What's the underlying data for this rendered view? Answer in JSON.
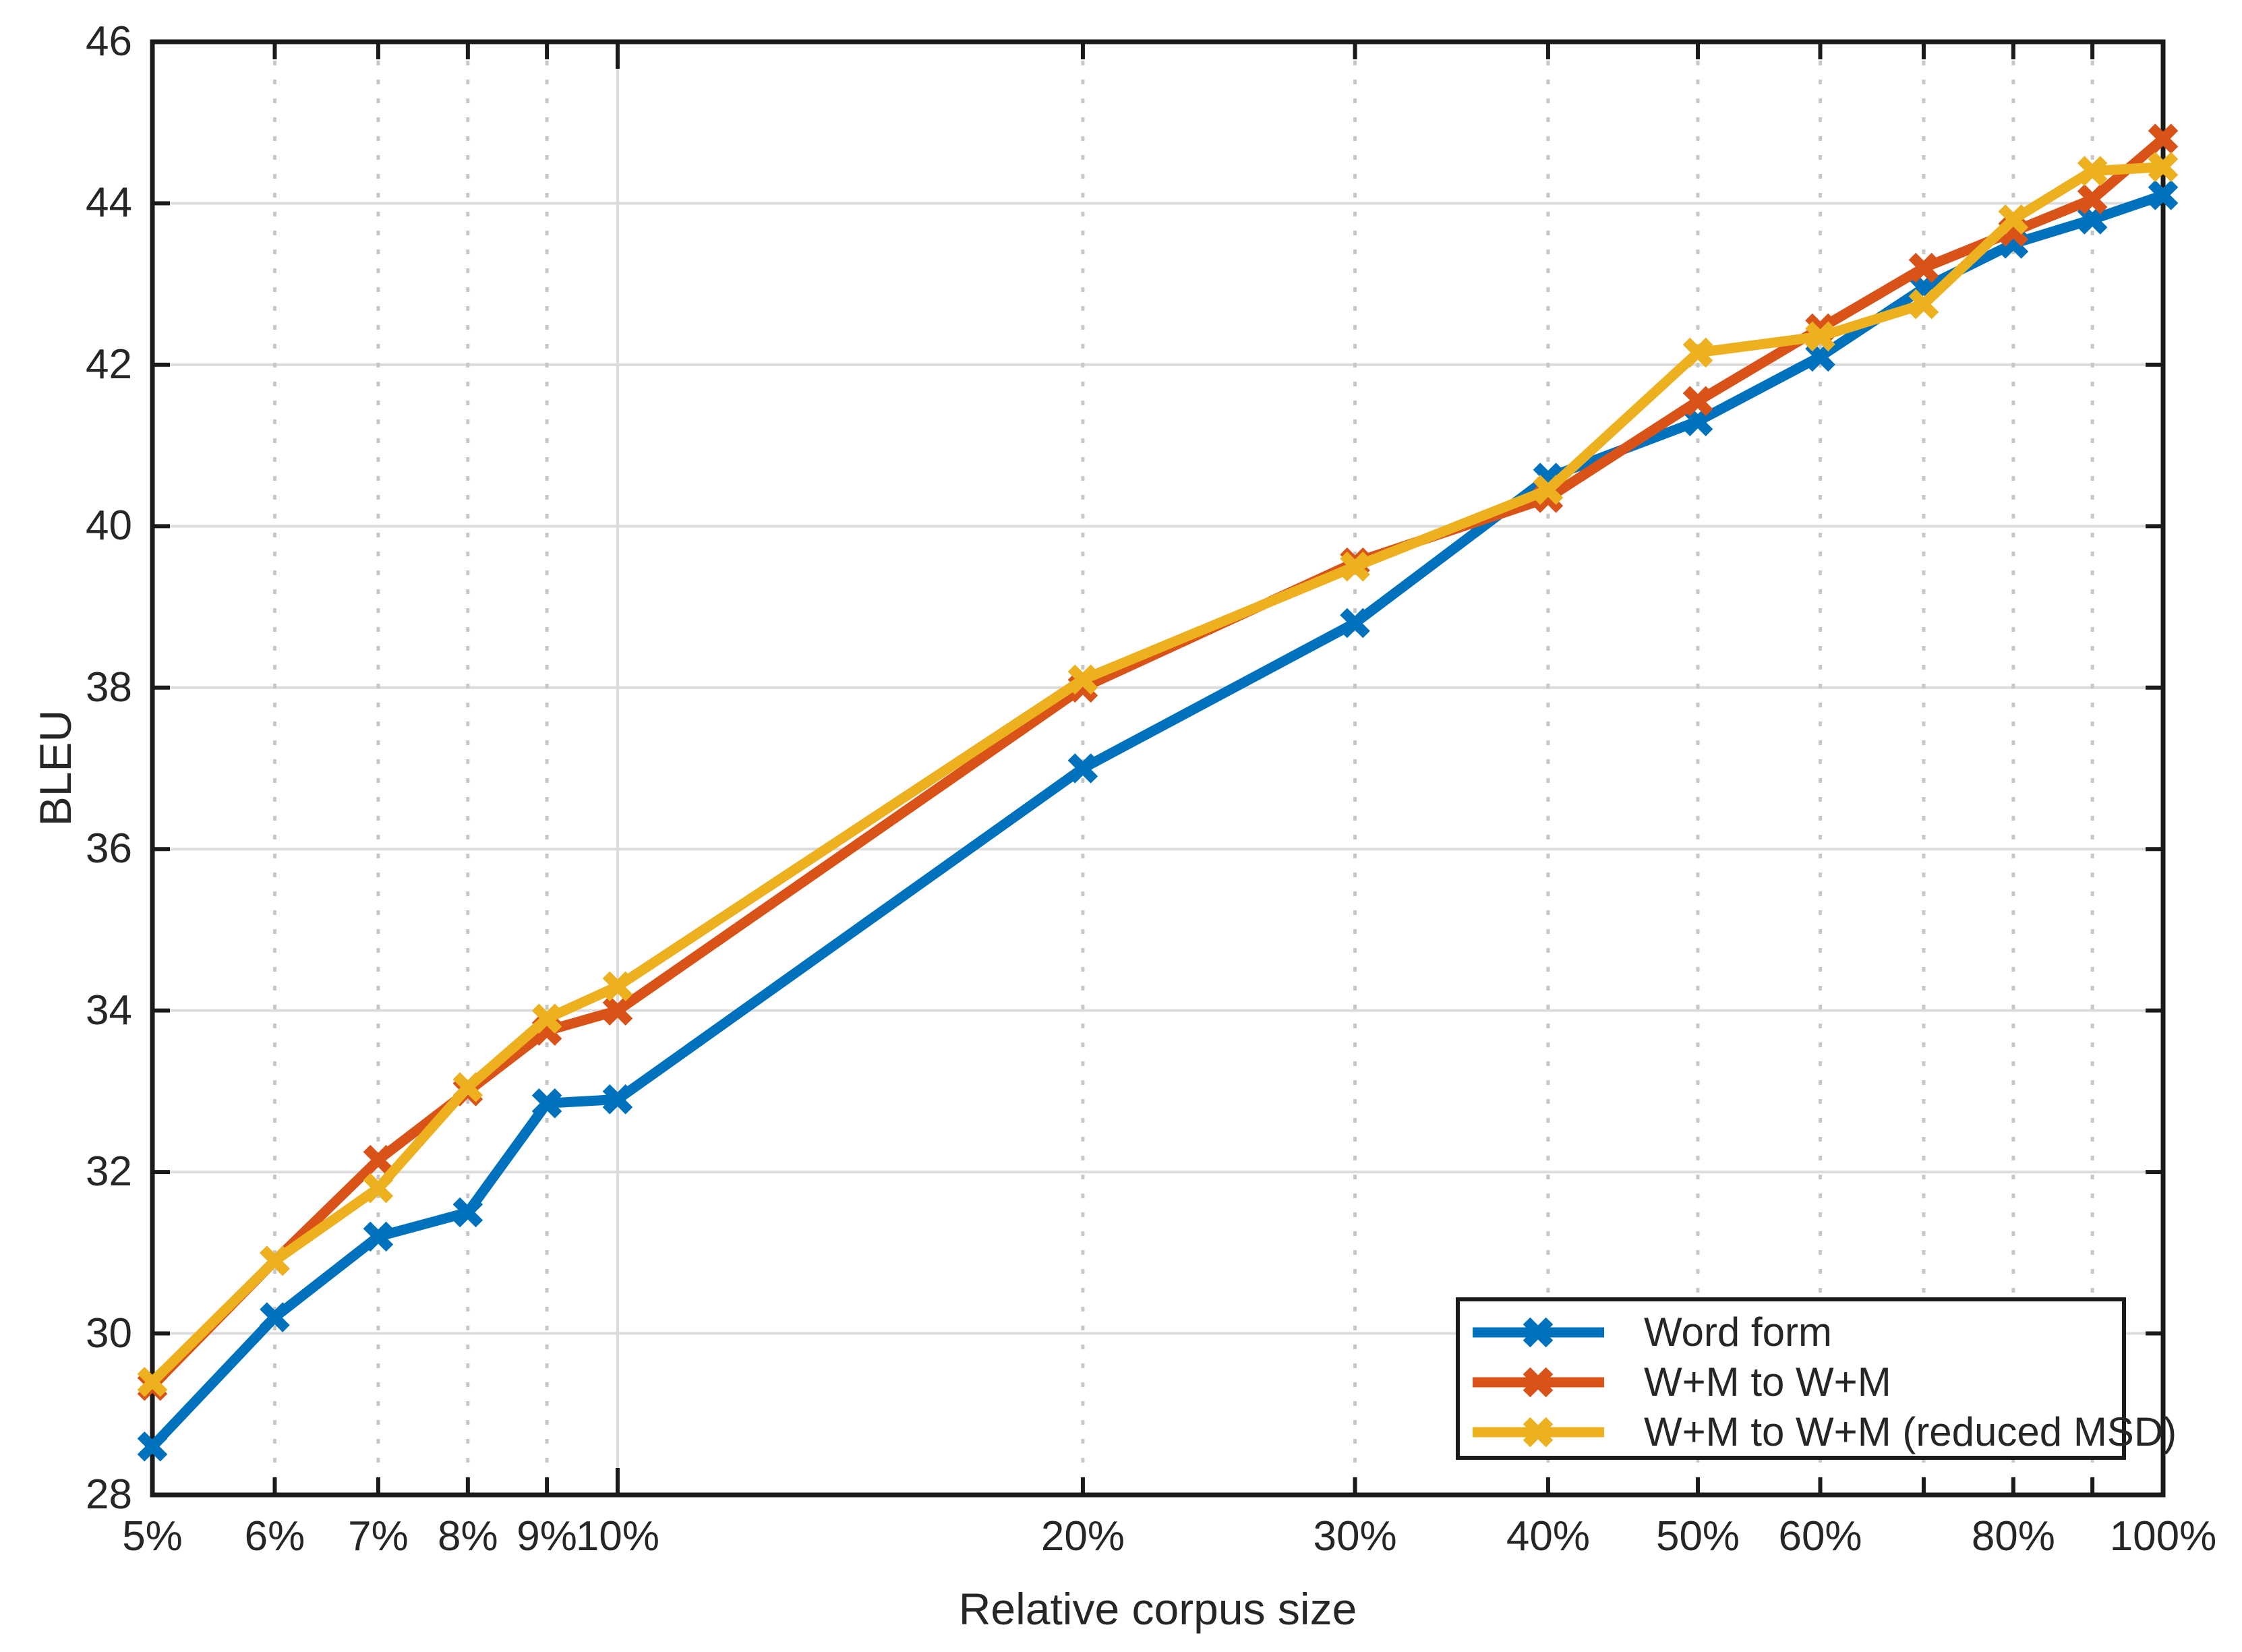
{
  "chart_data": {
    "type": "line",
    "title": "",
    "xlabel": "Relative corpus size",
    "ylabel": "BLEU",
    "x_scale": "log",
    "xlim": [
      5,
      100
    ],
    "ylim": [
      28,
      46
    ],
    "grid": {
      "horizontal": "solid",
      "vertical": "dotted-minor-with-solid-decades",
      "decade_lines": [
        10,
        100
      ]
    },
    "legend_position": "bottom-right",
    "style": {
      "axis_color": "#1a1a1a",
      "grid_color": "#dcdcdc",
      "minor_grid_color": "#c7c7c7",
      "text_color": "#262626",
      "background": "#ffffff"
    },
    "x": [
      5,
      6,
      7,
      8,
      9,
      10,
      20,
      30,
      40,
      50,
      60,
      70,
      80,
      90,
      100
    ],
    "x_ticks": [
      {
        "value": 5,
        "label": "5%"
      },
      {
        "value": 6,
        "label": "6%"
      },
      {
        "value": 7,
        "label": "7%"
      },
      {
        "value": 8,
        "label": "8%"
      },
      {
        "value": 9,
        "label": "9%"
      },
      {
        "value": 10,
        "label": "10%"
      },
      {
        "value": 20,
        "label": "20%"
      },
      {
        "value": 30,
        "label": "30%"
      },
      {
        "value": 40,
        "label": "40%"
      },
      {
        "value": 50,
        "label": "50%"
      },
      {
        "value": 60,
        "label": "60%"
      },
      {
        "value": 70,
        "label": ""
      },
      {
        "value": 80,
        "label": "80%"
      },
      {
        "value": 90,
        "label": ""
      },
      {
        "value": 100,
        "label": "100%"
      }
    ],
    "y_ticks": [
      28,
      30,
      32,
      34,
      36,
      38,
      40,
      42,
      44,
      46
    ],
    "series": [
      {
        "name": "Word form",
        "color": "#0072BD",
        "marker": "x",
        "values": [
          28.6,
          30.2,
          31.2,
          31.5,
          32.85,
          32.9,
          37.0,
          38.8,
          40.6,
          41.3,
          42.1,
          42.95,
          43.5,
          43.8,
          44.1
        ]
      },
      {
        "name": "W+M to W+M",
        "color": "#D95319",
        "marker": "x",
        "values": [
          29.35,
          30.9,
          32.15,
          33.0,
          33.75,
          34.0,
          38.0,
          39.55,
          40.35,
          41.55,
          42.45,
          43.2,
          43.65,
          44.05,
          44.8
        ]
      },
      {
        "name": "W+M to W+M (reduced MSD)",
        "color": "#EDB120",
        "marker": "x",
        "values": [
          29.4,
          30.9,
          31.8,
          33.05,
          33.9,
          34.3,
          38.1,
          39.5,
          40.45,
          42.15,
          42.35,
          42.75,
          43.8,
          44.4,
          44.45
        ]
      }
    ]
  }
}
